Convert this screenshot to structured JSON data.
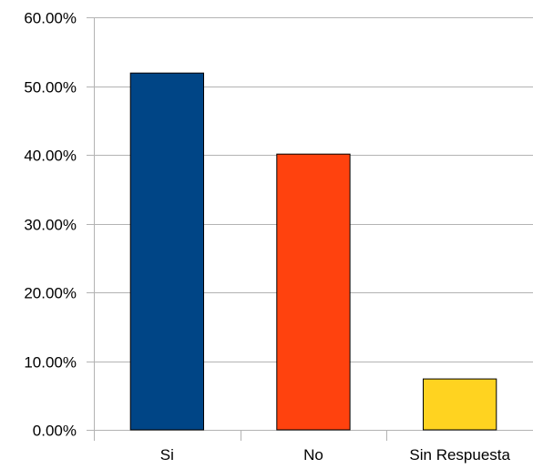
{
  "chart_data": {
    "type": "bar",
    "categories": [
      "Si",
      "No",
      "Sin Respuesta"
    ],
    "values": [
      51.9,
      40.1,
      7.4
    ],
    "colors": [
      "#004586",
      "#ff420e",
      "#ffd320"
    ],
    "ylim": [
      0,
      60
    ],
    "yticks": [
      0,
      10,
      20,
      30,
      40,
      50,
      60
    ],
    "ytick_labels": [
      "0.00%",
      "10.00%",
      "20.00%",
      "30.00%",
      "40.00%",
      "50.00%",
      "60.00%"
    ],
    "grid": true,
    "legend": "none"
  }
}
